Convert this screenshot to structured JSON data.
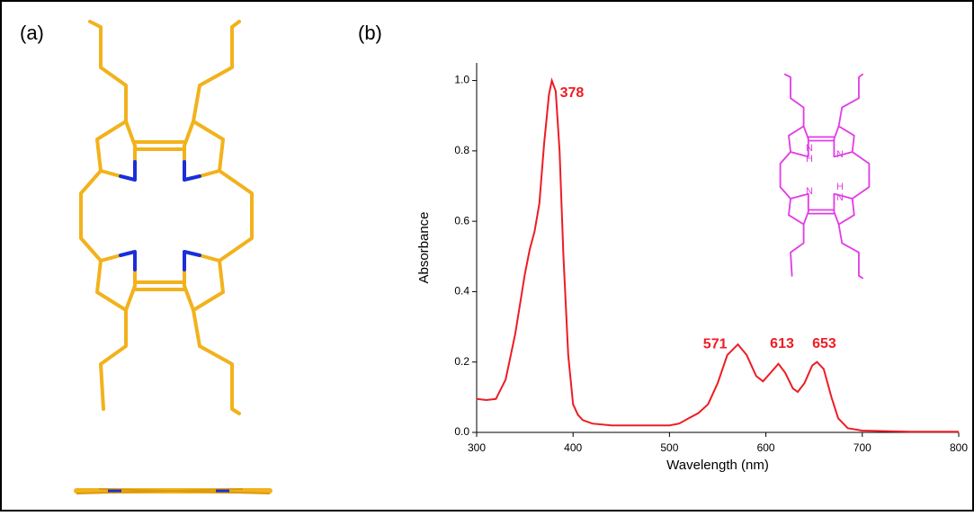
{
  "panel_labels": [
    "(a)",
    "(b)"
  ],
  "inset_atoms": [
    "N",
    "H",
    "N",
    "N",
    "H",
    "N"
  ],
  "chart_data": {
    "type": "line",
    "x_label": "Wavelength (nm)",
    "y_label": "Absorbance",
    "color": "#ee1c24",
    "x": [
      300,
      310,
      320,
      330,
      340,
      350,
      355,
      360,
      365,
      370,
      375,
      378,
      382,
      386,
      390,
      395,
      400,
      405,
      410,
      420,
      440,
      460,
      480,
      500,
      510,
      520,
      530,
      540,
      550,
      560,
      571,
      580,
      590,
      597,
      605,
      613,
      620,
      628,
      633,
      640,
      648,
      653,
      660,
      668,
      675,
      685,
      700,
      750,
      800
    ],
    "values": [
      0.095,
      0.092,
      0.095,
      0.15,
      0.28,
      0.45,
      0.52,
      0.57,
      0.65,
      0.82,
      0.96,
      1.0,
      0.97,
      0.8,
      0.5,
      0.22,
      0.08,
      0.05,
      0.035,
      0.025,
      0.02,
      0.02,
      0.02,
      0.02,
      0.025,
      0.04,
      0.055,
      0.08,
      0.14,
      0.22,
      0.25,
      0.22,
      0.16,
      0.145,
      0.17,
      0.195,
      0.17,
      0.125,
      0.115,
      0.14,
      0.19,
      0.2,
      0.18,
      0.1,
      0.04,
      0.012,
      0.005,
      0.002,
      0.002
    ],
    "xlim": [
      300,
      800
    ],
    "ylim": [
      0,
      1.05
    ],
    "xticks": [
      300,
      400,
      500,
      600,
      700,
      800
    ],
    "yticks": [
      {
        "value": 0,
        "label": "0.0"
      },
      0.2,
      0.4,
      0.6,
      0.8,
      {
        "value": 1,
        "label": "1.0"
      }
    ],
    "annotations": [
      {
        "text": "378",
        "x": 378,
        "y": 1.0
      },
      {
        "text": "571",
        "x": 571,
        "y": 0.25
      },
      {
        "text": "613",
        "x": 613,
        "y": 0.195
      },
      {
        "text": "653",
        "x": 653,
        "y": 0.2
      }
    ]
  }
}
